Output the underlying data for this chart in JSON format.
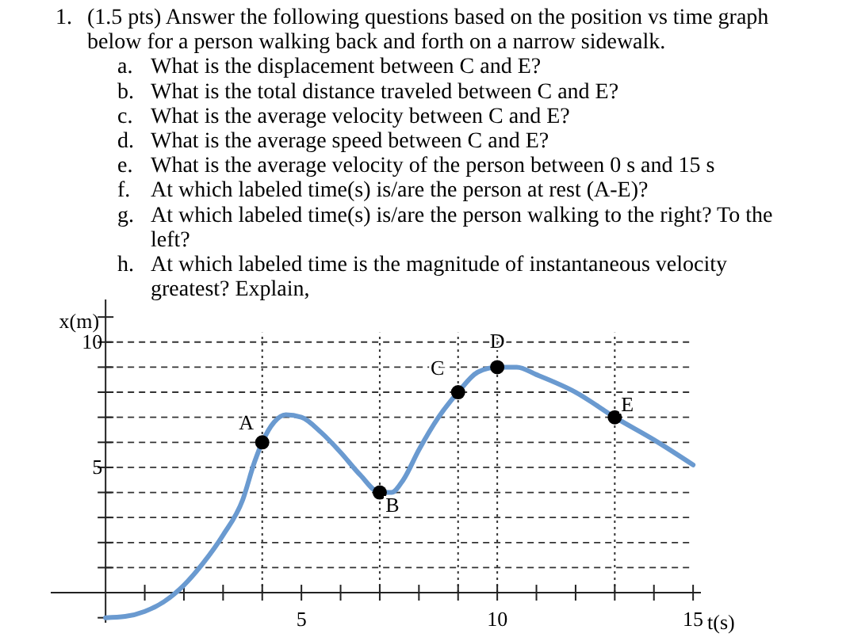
{
  "chart_data": {
    "type": "line",
    "title": "1. (1.5 pts) Answer the following questions based on the position vs time graph below for a person walking back and forth on a narrow sidewalk.",
    "annotations": [
      "a. What is the displacement between C and E?",
      "b. What is the total distance traveled between C and E?",
      "c. What is the average velocity between C and E?",
      "d. What is the average speed between C and E?",
      "e. What is the average velocity of the person between 0 s and 15 s",
      "f. At which labeled time(s) is/are the person at rest (A-E)?",
      "g. At which labeled time(s) is/are the person walking to the right? To the left?",
      "h. At which labeled time is the magnitude of instantaneous velocity greatest? Explain,",
      {
        "text": "A",
        "x": 4,
        "y": 6
      },
      {
        "text": "B",
        "x": 7,
        "y": 4
      },
      {
        "text": "C",
        "x": 9,
        "y": 8
      },
      {
        "text": "D",
        "x": 10,
        "y": 9
      },
      {
        "text": "E",
        "x": 13,
        "y": 7
      }
    ],
    "xlabel": "t(s)",
    "ylabel": "x(m)",
    "series": [
      {
        "color": "#6a9ad0",
        "marker": "none",
        "x": [
          0,
          0.5,
          1,
          1.5,
          2,
          2.5,
          3,
          3.5,
          3.8,
          4,
          4.3,
          4.6,
          5,
          5.5,
          6,
          6.5,
          7,
          7.3,
          7.6,
          8,
          8.5,
          9,
          9.5,
          10,
          10.5,
          11,
          12,
          13,
          14,
          15
        ],
        "values": [
          -1,
          -0.95,
          -0.75,
          -0.35,
          0.3,
          1.2,
          2.3,
          3.7,
          5.2,
          6,
          6.8,
          7.1,
          7,
          6.4,
          5.6,
          4.7,
          4,
          4,
          4.5,
          5.7,
          7,
          8,
          8.8,
          9,
          9,
          8.7,
          8,
          7,
          6.1,
          5.1
        ]
      },
      {
        "type": "scatter",
        "color": "#000000",
        "marker": "circle",
        "x": [
          4,
          7,
          9,
          10,
          13
        ],
        "values": [
          6,
          4,
          8,
          9,
          7
        ]
      }
    ],
    "xlim": [
      -1.4,
      15.2
    ],
    "ylim": [
      -1.2,
      11.7
    ],
    "xticks": [
      {
        "value": 1,
        "label": null
      },
      {
        "value": 2,
        "label": null
      },
      {
        "value": 3,
        "label": null
      },
      {
        "value": 4,
        "label": null
      },
      5,
      {
        "value": 6,
        "label": null
      },
      {
        "value": 7,
        "label": null
      },
      {
        "value": 8,
        "label": null
      },
      {
        "value": 9,
        "label": null
      },
      10,
      {
        "value": 11,
        "label": null
      },
      {
        "value": 12,
        "label": null
      },
      {
        "value": 13,
        "label": null
      },
      {
        "value": 14,
        "label": null
      },
      15
    ],
    "yticks": [
      {
        "value": -1,
        "label": null
      },
      {
        "value": 1,
        "label": null
      },
      {
        "value": 2,
        "label": null
      },
      {
        "value": 3,
        "label": null
      },
      {
        "value": 4,
        "label": null
      },
      5,
      {
        "value": 6,
        "label": null
      },
      {
        "value": 7,
        "label": null
      },
      {
        "value": 8,
        "label": null
      },
      {
        "value": 9,
        "label": null
      },
      10,
      {
        "value": 11,
        "label": null
      }
    ],
    "grid": "y",
    "ref_lines": [
      {
        "axis": "x",
        "value": 4,
        "line_style": "dotted"
      },
      {
        "axis": "x",
        "value": 7,
        "line_style": "dotted"
      },
      {
        "axis": "x",
        "value": 9,
        "line_style": "dotted"
      },
      {
        "axis": "x",
        "value": 10,
        "line_style": "dotted"
      },
      {
        "axis": "x",
        "value": 13,
        "line_style": "dotted"
      }
    ]
  }
}
